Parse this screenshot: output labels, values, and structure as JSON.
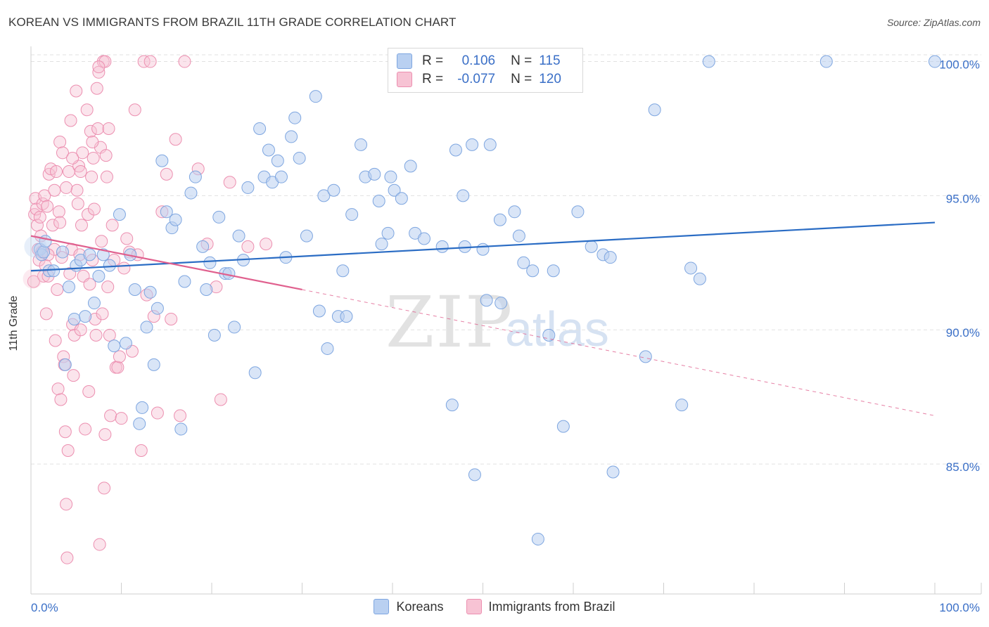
{
  "title": "KOREAN VS IMMIGRANTS FROM BRAZIL 11TH GRADE CORRELATION CHART",
  "source": "Source: ZipAtlas.com",
  "watermark": {
    "zip": "ZIP",
    "atlas": "atlas"
  },
  "legend_top": {
    "r_label": "R =",
    "n_label": "N =",
    "series": [
      {
        "name": "Koreans",
        "r": "0.106",
        "n": "115",
        "color": "#7ea6e0",
        "fill": "#b9d0f1"
      },
      {
        "name": "Immigrants from Brazil",
        "r": "-0.077",
        "n": "120",
        "color": "#ec8fb0",
        "fill": "#f7c3d4"
      }
    ]
  },
  "colors": {
    "blue": "#3a6fc7",
    "blue_line": "#2a6cc4",
    "pink_line": "#e0608e",
    "pink_point": "#ec8fb0",
    "blue_point": "#7ea6e0",
    "grid": "#e1e1e1",
    "axis_text": "#3a6fc7"
  },
  "chart_data": {
    "type": "scatter",
    "title": "KOREAN VS IMMIGRANTS FROM BRAZIL 11TH GRADE CORRELATION CHART",
    "xlabel": "",
    "ylabel": "11th Grade",
    "xlim": [
      0,
      100
    ],
    "ylim": [
      80.5,
      100.5
    ],
    "x_tick_labels": [
      "0.0%",
      "100.0%"
    ],
    "y_ticks": [
      85,
      90,
      95,
      100
    ],
    "y_tick_labels": [
      "85.0%",
      "90.0%",
      "95.0%",
      "100.0%"
    ],
    "grid": true,
    "legend": "top-center",
    "series": [
      {
        "name": "Koreans",
        "r": 0.106,
        "n": 115,
        "trend": {
          "x": [
            0,
            100
          ],
          "y": [
            92.2,
            94.0
          ],
          "style": "solid"
        },
        "points": [
          [
            1.0,
            93.0
          ],
          [
            1.2,
            92.8
          ],
          [
            1.4,
            92.9
          ],
          [
            1.6,
            93.3
          ],
          [
            2.0,
            92.2
          ],
          [
            2.5,
            92.2
          ],
          [
            3.5,
            92.9
          ],
          [
            3.8,
            88.7
          ],
          [
            4.2,
            91.6
          ],
          [
            4.8,
            90.4
          ],
          [
            5.0,
            92.4
          ],
          [
            5.5,
            92.6
          ],
          [
            6.0,
            90.5
          ],
          [
            6.5,
            92.8
          ],
          [
            7.0,
            91.0
          ],
          [
            7.5,
            92.0
          ],
          [
            8.0,
            92.8
          ],
          [
            8.7,
            92.4
          ],
          [
            9.2,
            89.4
          ],
          [
            9.8,
            94.3
          ],
          [
            10.5,
            89.5
          ],
          [
            11.0,
            92.8
          ],
          [
            11.5,
            91.5
          ],
          [
            12.0,
            86.5
          ],
          [
            12.3,
            87.1
          ],
          [
            12.8,
            90.1
          ],
          [
            13.2,
            91.4
          ],
          [
            13.6,
            88.7
          ],
          [
            14.0,
            90.8
          ],
          [
            14.5,
            96.3
          ],
          [
            15.0,
            94.4
          ],
          [
            15.6,
            93.8
          ],
          [
            16.0,
            94.1
          ],
          [
            16.6,
            86.3
          ],
          [
            17.0,
            91.8
          ],
          [
            17.7,
            95.1
          ],
          [
            18.2,
            95.7
          ],
          [
            19.0,
            93.1
          ],
          [
            19.4,
            91.5
          ],
          [
            19.8,
            92.5
          ],
          [
            20.3,
            89.8
          ],
          [
            20.8,
            94.2
          ],
          [
            21.5,
            92.1
          ],
          [
            21.9,
            92.1
          ],
          [
            22.5,
            90.1
          ],
          [
            23.0,
            93.5
          ],
          [
            23.5,
            92.6
          ],
          [
            24.0,
            95.3
          ],
          [
            24.8,
            88.4
          ],
          [
            25.3,
            97.5
          ],
          [
            25.8,
            95.7
          ],
          [
            26.3,
            96.7
          ],
          [
            26.7,
            95.5
          ],
          [
            27.3,
            96.3
          ],
          [
            27.7,
            95.7
          ],
          [
            28.2,
            92.7
          ],
          [
            28.8,
            97.2
          ],
          [
            29.2,
            97.9
          ],
          [
            29.7,
            96.4
          ],
          [
            30.5,
            93.5
          ],
          [
            31.5,
            98.7
          ],
          [
            31.9,
            90.7
          ],
          [
            32.4,
            95.0
          ],
          [
            32.8,
            89.3
          ],
          [
            33.5,
            95.2
          ],
          [
            34.0,
            90.5
          ],
          [
            34.5,
            92.2
          ],
          [
            34.9,
            90.5
          ],
          [
            35.5,
            94.3
          ],
          [
            36.5,
            96.9
          ],
          [
            37.0,
            95.7
          ],
          [
            38.0,
            95.8
          ],
          [
            38.5,
            94.8
          ],
          [
            38.8,
            93.2
          ],
          [
            39.5,
            93.6
          ],
          [
            39.8,
            95.7
          ],
          [
            40.2,
            95.2
          ],
          [
            41.0,
            94.9
          ],
          [
            42.0,
            96.1
          ],
          [
            42.5,
            93.6
          ],
          [
            43.5,
            93.4
          ],
          [
            45.5,
            93.1
          ],
          [
            46.6,
            87.2
          ],
          [
            47.0,
            96.7
          ],
          [
            47.8,
            95.0
          ],
          [
            48.0,
            93.1
          ],
          [
            48.8,
            96.9
          ],
          [
            49.1,
            84.6
          ],
          [
            50.0,
            93.0
          ],
          [
            50.4,
            91.1
          ],
          [
            50.8,
            96.9
          ],
          [
            51.9,
            94.1
          ],
          [
            52.0,
            91.0
          ],
          [
            53.5,
            94.4
          ],
          [
            54.0,
            93.5
          ],
          [
            54.5,
            92.5
          ],
          [
            55.5,
            92.2
          ],
          [
            56.1,
            82.2
          ],
          [
            57.3,
            89.8
          ],
          [
            57.8,
            92.2
          ],
          [
            58.9,
            86.4
          ],
          [
            60.5,
            94.4
          ],
          [
            62.0,
            93.1
          ],
          [
            63.3,
            92.8
          ],
          [
            64.1,
            92.7
          ],
          [
            64.4,
            84.7
          ],
          [
            68.0,
            89.0
          ],
          [
            69.0,
            98.2
          ],
          [
            72.0,
            87.2
          ],
          [
            73.0,
            92.3
          ],
          [
            74.0,
            91.9
          ],
          [
            75.0,
            100.0
          ],
          [
            88.0,
            100.0
          ],
          [
            100.0,
            100.0
          ],
          [
            40.5,
            100.0
          ]
        ]
      },
      {
        "name": "Immigrants from Brazil",
        "r": -0.077,
        "n": 120,
        "trend": {
          "x": [
            0,
            30
          ],
          "y": [
            93.5,
            91.5
          ],
          "dashed_extension": {
            "x": [
              30,
              100
            ],
            "y": [
              91.5,
              86.8
            ]
          }
        },
        "points": [
          [
            0.3,
            91.8
          ],
          [
            0.4,
            94.3
          ],
          [
            0.5,
            94.9
          ],
          [
            0.6,
            94.5
          ],
          [
            0.7,
            93.9
          ],
          [
            0.8,
            93.0
          ],
          [
            0.9,
            92.6
          ],
          [
            1.0,
            94.2
          ],
          [
            1.1,
            93.5
          ],
          [
            1.2,
            92.9
          ],
          [
            1.3,
            94.7
          ],
          [
            1.4,
            92.0
          ],
          [
            1.5,
            95.0
          ],
          [
            1.6,
            92.4
          ],
          [
            1.7,
            90.6
          ],
          [
            1.8,
            94.6
          ],
          [
            1.9,
            92.0
          ],
          [
            2.0,
            95.8
          ],
          [
            2.2,
            96.0
          ],
          [
            2.4,
            93.9
          ],
          [
            2.6,
            95.2
          ],
          [
            2.7,
            89.6
          ],
          [
            2.8,
            95.9
          ],
          [
            2.9,
            91.5
          ],
          [
            3.0,
            87.8
          ],
          [
            3.1,
            94.4
          ],
          [
            3.2,
            97.0
          ],
          [
            3.3,
            87.4
          ],
          [
            3.4,
            92.7
          ],
          [
            3.5,
            96.6
          ],
          [
            3.6,
            89.0
          ],
          [
            3.7,
            88.7
          ],
          [
            3.8,
            86.2
          ],
          [
            3.9,
            83.5
          ],
          [
            4.0,
            81.5
          ],
          [
            4.1,
            85.5
          ],
          [
            4.2,
            95.9
          ],
          [
            4.3,
            92.1
          ],
          [
            4.4,
            97.8
          ],
          [
            4.5,
            93.0
          ],
          [
            4.6,
            90.2
          ],
          [
            4.7,
            88.3
          ],
          [
            4.8,
            89.8
          ],
          [
            5.0,
            98.9
          ],
          [
            5.1,
            95.2
          ],
          [
            5.2,
            94.7
          ],
          [
            5.3,
            96.1
          ],
          [
            5.4,
            92.8
          ],
          [
            5.5,
            90.0
          ],
          [
            5.6,
            93.9
          ],
          [
            5.7,
            96.6
          ],
          [
            5.8,
            92.0
          ],
          [
            6.0,
            86.3
          ],
          [
            6.2,
            98.2
          ],
          [
            6.3,
            94.3
          ],
          [
            6.4,
            87.7
          ],
          [
            6.5,
            91.7
          ],
          [
            6.6,
            97.4
          ],
          [
            6.7,
            95.7
          ],
          [
            6.8,
            92.6
          ],
          [
            6.9,
            96.4
          ],
          [
            7.0,
            94.5
          ],
          [
            7.1,
            90.4
          ],
          [
            7.2,
            89.8
          ],
          [
            7.3,
            99.0
          ],
          [
            7.4,
            97.5
          ],
          [
            7.5,
            99.6
          ],
          [
            7.6,
            82.0
          ],
          [
            7.7,
            96.8
          ],
          [
            7.8,
            93.3
          ],
          [
            7.9,
            90.6
          ],
          [
            8.0,
            100.0
          ],
          [
            8.1,
            84.1
          ],
          [
            8.2,
            86.1
          ],
          [
            8.3,
            96.5
          ],
          [
            8.4,
            95.7
          ],
          [
            8.5,
            91.6
          ],
          [
            8.6,
            97.5
          ],
          [
            8.7,
            89.8
          ],
          [
            8.8,
            86.8
          ],
          [
            9.0,
            93.9
          ],
          [
            9.2,
            92.6
          ],
          [
            9.4,
            88.6
          ],
          [
            9.6,
            88.6
          ],
          [
            9.8,
            89.0
          ],
          [
            10.0,
            86.7
          ],
          [
            10.3,
            92.3
          ],
          [
            10.6,
            93.4
          ],
          [
            10.9,
            92.9
          ],
          [
            11.2,
            89.2
          ],
          [
            11.5,
            98.2
          ],
          [
            11.8,
            92.8
          ],
          [
            12.2,
            85.5
          ],
          [
            12.5,
            100.0
          ],
          [
            12.8,
            91.3
          ],
          [
            13.2,
            100.0
          ],
          [
            13.6,
            90.5
          ],
          [
            14.0,
            86.9
          ],
          [
            14.5,
            94.4
          ],
          [
            15.0,
            95.8
          ],
          [
            15.5,
            90.4
          ],
          [
            16.0,
            97.1
          ],
          [
            16.5,
            86.8
          ],
          [
            17.0,
            100.0
          ],
          [
            18.5,
            96.0
          ],
          [
            19.5,
            93.2
          ],
          [
            20.5,
            91.6
          ],
          [
            21.0,
            87.4
          ],
          [
            22.0,
            95.5
          ],
          [
            24.0,
            93.1
          ],
          [
            26.0,
            93.2
          ],
          [
            8.2,
            100.0
          ],
          [
            7.5,
            99.8
          ],
          [
            6.8,
            97.0
          ],
          [
            5.5,
            95.9
          ],
          [
            4.6,
            96.4
          ],
          [
            3.9,
            95.3
          ],
          [
            3.2,
            94.0
          ],
          [
            2.6,
            93.0
          ],
          [
            1.9,
            92.8
          ]
        ]
      }
    ]
  }
}
